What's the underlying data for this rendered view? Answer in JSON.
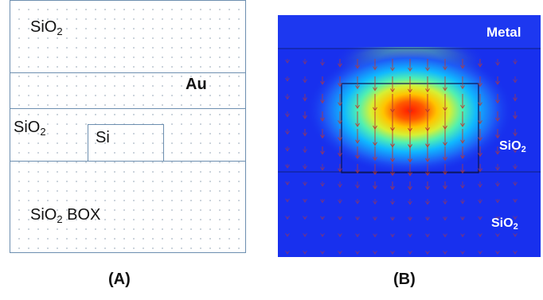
{
  "panel_a": {
    "labels": {
      "top_oxide": {
        "base": "SiO",
        "sub": "2"
      },
      "metal": "Au",
      "side_oxide": {
        "base": "SiO",
        "sub": "2"
      },
      "core": "Si",
      "box_oxide": {
        "base": "SiO",
        "sub": "2",
        "suffix": " BOX"
      }
    },
    "caption": "(A)"
  },
  "panel_b": {
    "labels": {
      "metal": "Metal",
      "upper_oxide": {
        "base": "SiO",
        "sub": "2"
      },
      "lower_oxide": {
        "base": "SiO",
        "sub": "2"
      }
    },
    "caption": "(B)"
  },
  "colors": {
    "outline": "#6d8fb0",
    "background_field": "#1830ee",
    "arrow": "#c0392b"
  }
}
